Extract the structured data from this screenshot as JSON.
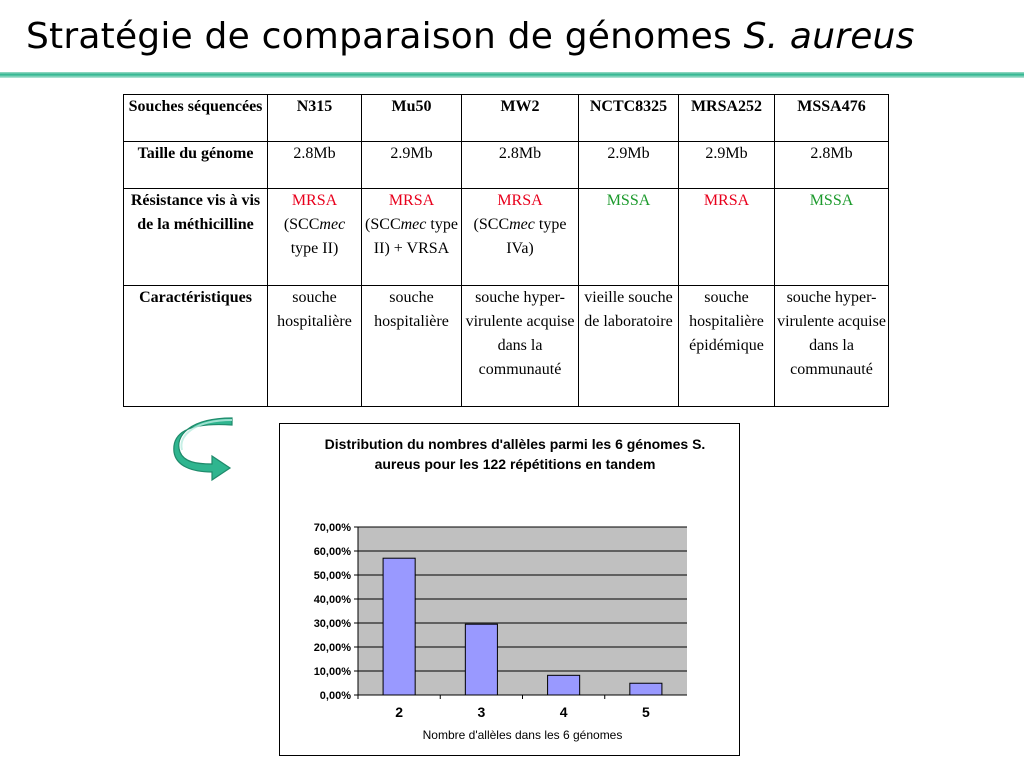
{
  "slide": {
    "title_main": "Stratégie de comparaison de génomes ",
    "title_species": "S. aureus"
  },
  "table": {
    "header": [
      "Souches séquencées",
      "N315",
      "Mu50",
      "MW2",
      "NCTC8325",
      "MRSA252",
      "MSSA476"
    ],
    "size_row": {
      "label": "Taille du génome",
      "values": [
        "2.8Mb",
        "2.9Mb",
        "2.8Mb",
        "2.9Mb",
        "2.9Mb",
        "2.8Mb"
      ]
    },
    "resistance_row": {
      "label": "Résistance vis à vis de la méthicilline",
      "n315": {
        "status": "MRSA",
        "open": "(SCC",
        "mec": "mec",
        "close": " type II)"
      },
      "mu50": {
        "status": "MRSA",
        "open": "(SCC",
        "mec": "mec",
        "close": " type II) + VRSA"
      },
      "mw2": {
        "status": "MRSA",
        "open": "(SCC",
        "mec": "mec",
        "close": " type IVa)"
      },
      "nctc8325": {
        "status": "MSSA"
      },
      "mrsa252": {
        "status": "MRSA"
      },
      "mssa476": {
        "status": "MSSA"
      }
    },
    "features_row": {
      "label": "Caractéristiques",
      "values": [
        "souche hospitalière",
        "souche hospitalière",
        "souche hyper-virulente acquise dans la communauté",
        "vieille souche de laboratoire",
        "souche hospitalière épidémique",
        "souche hyper-virulente acquise dans la communauté"
      ]
    }
  },
  "colors": {
    "mrsa": "#e8001c",
    "mssa": "#1c9a2c",
    "arrow_fill": "#2fb58f",
    "bar_fill": "#9999ff",
    "plot_bg": "#c0c0c0"
  },
  "icons": {
    "curved_arrow": "curved-arrow-icon"
  },
  "chart_data": {
    "type": "bar",
    "title": "Distribution du nombres d'allèles parmi les 6 génomes S. aureus pour les 122 répétitions en tandem",
    "xlabel": "Nombre d'allèles dans les 6 génomes",
    "ylabel": "",
    "categories": [
      "2",
      "3",
      "4",
      "5"
    ],
    "values": [
      0.57,
      0.295,
      0.082,
      0.049
    ],
    "ylim": [
      0,
      0.7
    ],
    "yticks": [
      0,
      0.1,
      0.2,
      0.3,
      0.4,
      0.5,
      0.6,
      0.7
    ],
    "ytick_labels": [
      "0,00%",
      "10,00%",
      "20,00%",
      "30,00%",
      "40,00%",
      "50,00%",
      "60,00%",
      "70,00%"
    ],
    "grid": true,
    "legend": "none"
  }
}
